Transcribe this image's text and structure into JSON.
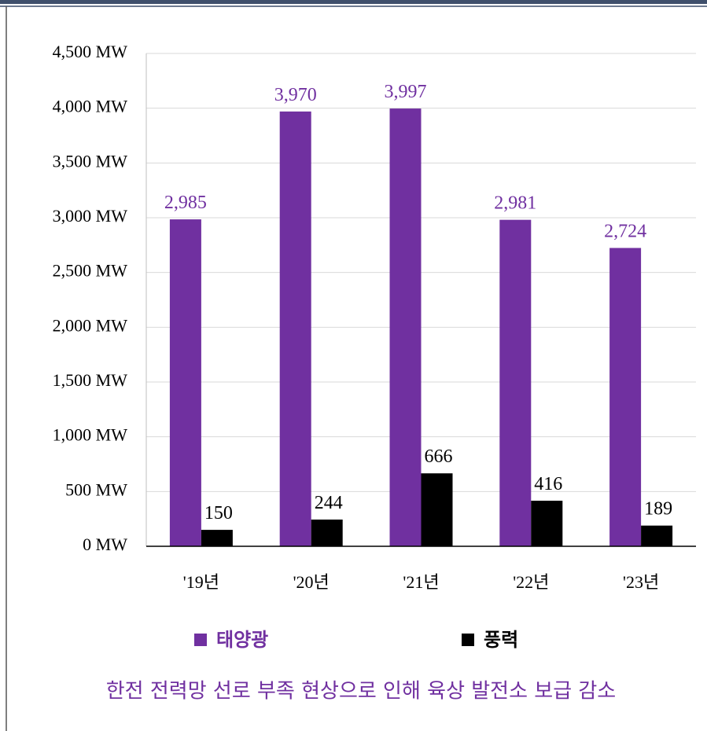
{
  "chart_data": {
    "type": "bar",
    "categories": [
      "'19년",
      "'20년",
      "'21년",
      "'22년",
      "'23년"
    ],
    "series": [
      {
        "name": "태양광",
        "color": "#7030a0",
        "values": [
          2985,
          3970,
          3997,
          2981,
          2724
        ],
        "value_labels": [
          "2,985",
          "3,970",
          "3,997",
          "2,981",
          "2,724"
        ]
      },
      {
        "name": "풍력",
        "color": "#000000",
        "values": [
          150,
          244,
          666,
          416,
          189
        ]
      }
    ],
    "ylim": [
      0,
      4500
    ],
    "yticks": [
      {
        "value": 0,
        "label": "0 MW"
      },
      {
        "value": 500,
        "label": "500 MW"
      },
      {
        "value": 1000,
        "label": "1,000 MW"
      },
      {
        "value": 1500,
        "label": "1,500 MW"
      },
      {
        "value": 2000,
        "label": "2,000 MW"
      },
      {
        "value": 2500,
        "label": "2,500 MW"
      },
      {
        "value": 3000,
        "label": "3,000 MW"
      },
      {
        "value": 3500,
        "label": "3,500 MW"
      },
      {
        "value": 4000,
        "label": "4,000 MW"
      },
      {
        "value": 4500,
        "label": "4,500 MW"
      }
    ],
    "grid": true,
    "legend": "bottom",
    "caption": "한전 전력망 선로 부족 현상으로 인해 육상 발전소 보급 감소"
  }
}
